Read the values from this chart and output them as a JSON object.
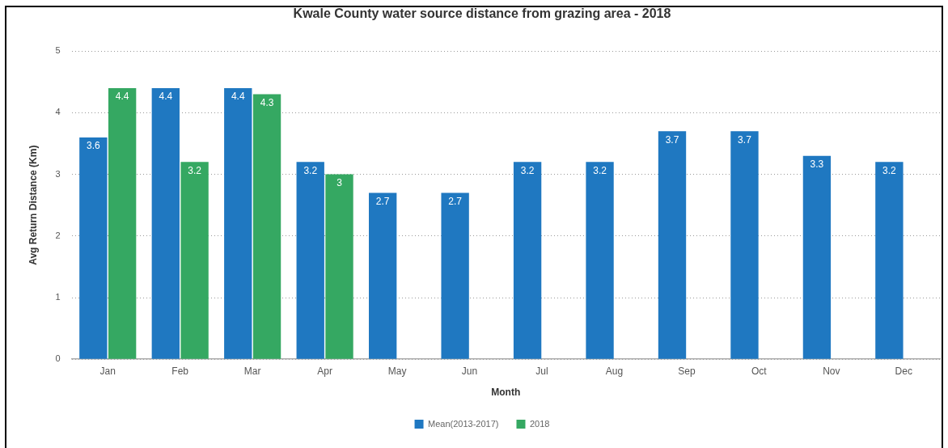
{
  "chart_data": {
    "type": "bar",
    "title": "Kwale County water source distance from grazing area - 2018",
    "xlabel": "Month",
    "ylabel": "Avg Return Distance (Km)",
    "categories": [
      "Jan",
      "Feb",
      "Mar",
      "Apr",
      "May",
      "Jun",
      "Jul",
      "Aug",
      "Sep",
      "Oct",
      "Nov",
      "Dec"
    ],
    "series": [
      {
        "name": "Mean(2013-2017)",
        "color": "#1f78c1",
        "values": [
          3.6,
          4.4,
          4.4,
          3.2,
          2.7,
          2.7,
          3.2,
          3.2,
          3.7,
          3.7,
          3.3,
          3.2
        ]
      },
      {
        "name": "2018",
        "color": "#35a862",
        "values": [
          4.4,
          3.2,
          4.3,
          3,
          null,
          null,
          null,
          null,
          null,
          null,
          null,
          null
        ]
      }
    ],
    "ylim": [
      0,
      5
    ],
    "yticks": [
      0,
      1,
      2,
      3,
      4,
      5
    ],
    "grid": "y",
    "legend": "bottom",
    "data_labels": true
  }
}
